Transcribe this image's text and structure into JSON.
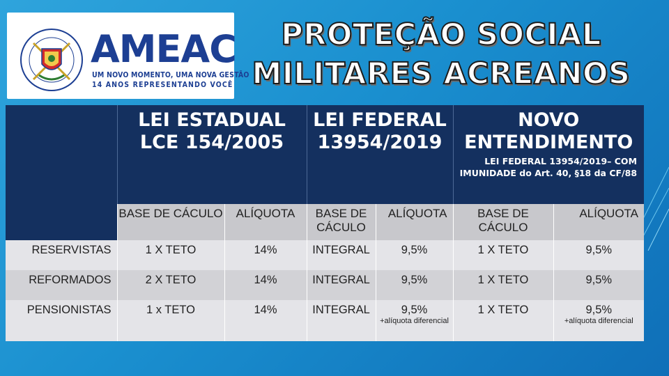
{
  "logo": {
    "brand": "AMEAC",
    "tagline_1": "UM NOVO MOMENTO, UMA NOVA GESTÃO",
    "tagline_2": "14 ANOS REPRESENTANDO VOCÊ",
    "seal_text_top": "ASSOCIAÇÃO DOS MILITARES",
    "seal_text_bottom": "ACRE"
  },
  "title": {
    "line_1": "PROTEÇÃO SOCIAL",
    "line_2": "MILITARES ACREANOS"
  },
  "table": {
    "groups": [
      {
        "title_1": "LEI ESTADUAL",
        "title_2": "LCE 154/2005",
        "subtitle": ""
      },
      {
        "title_1": "LEI FEDERAL",
        "title_2": "13954/2019",
        "subtitle": ""
      },
      {
        "title_1": "NOVO",
        "title_2": "ENTENDIMENTO",
        "subtitle": "LEI FEDERAL 13954/2019– COM IMUNIDADE do Art. 40, §18 da CF/88"
      }
    ],
    "subheaders": [
      "BASE DE CÁCULO",
      "ALÍQUOTA",
      "BASE DE CÁCULO",
      "ALÍQUOTA",
      "BASE DE CÁCULO",
      "ALÍQUOTA"
    ],
    "rows": [
      {
        "label": "RESERVISTAS",
        "cells": [
          "1 X TETO",
          "14%",
          "INTEGRAL",
          "9,5%",
          "1 X TETO",
          "9,5%"
        ],
        "notes": [
          "",
          ""
        ]
      },
      {
        "label": "REFORMADOS",
        "cells": [
          "2 X TETO",
          "14%",
          "INTEGRAL",
          "9,5%",
          "1 X TETO",
          "9,5%"
        ],
        "notes": [
          "",
          ""
        ]
      },
      {
        "label": "PENSIONISTAS",
        "cells": [
          "1 x TETO",
          "14%",
          "INTEGRAL",
          "9,5%",
          "1 X TETO",
          "9,5%"
        ],
        "notes": [
          "+alíquota diferencial",
          "+alíquota diferencial"
        ]
      }
    ]
  },
  "colors": {
    "background": "#1a8fcf",
    "header_navy": "#14305f",
    "brand_blue": "#1d3f93",
    "subheader_gray": "#c8c8cc",
    "row_light": "#e4e4e8",
    "row_dark": "#d2d2d6"
  }
}
